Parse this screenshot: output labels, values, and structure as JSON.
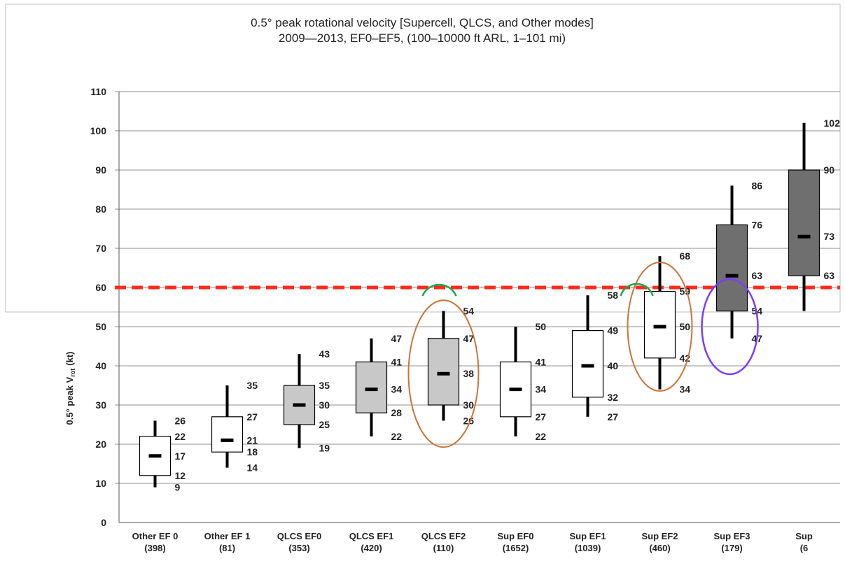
{
  "chart_data": {
    "type": "box",
    "title": "0.5° peak rotational velocity [Supercell, QLCS, and Other modes]",
    "subtitle": "2009—2013, EF0–EF5, (100–10000 ft ARL, 1–101 mi)",
    "ylabel": "0.5° peak V",
    "ylabel_sub": "rot",
    "ylabel_unit": "(kt)",
    "ylim": [
      0,
      110
    ],
    "yticks": [
      "0",
      "10",
      "20",
      "30",
      "40",
      "50",
      "60",
      "70",
      "80",
      "90",
      "100",
      "110"
    ],
    "threshold": 60,
    "categories": [
      {
        "name": "Other EF 0",
        "count": "(398)"
      },
      {
        "name": "Other EF 1",
        "count": "(81)"
      },
      {
        "name": "QLCS EF0",
        "count": "(353)"
      },
      {
        "name": "QLCS EF1",
        "count": "(420)"
      },
      {
        "name": "QLCS EF2",
        "count": "(110)"
      },
      {
        "name": "Sup EF0",
        "count": "(1652)"
      },
      {
        "name": "Sup EF1",
        "count": "(1039)"
      },
      {
        "name": "Sup EF2",
        "count": "(460)"
      },
      {
        "name": "Sup EF3",
        "count": "(179)"
      },
      {
        "name": "Sup",
        "count": "(6"
      }
    ],
    "boxes": [
      {
        "min": 9,
        "q1": 12,
        "median": 17,
        "q3": 22,
        "max": 26,
        "labels": {
          "max": "26",
          "q3": "22",
          "median": "17",
          "q1": "12",
          "min": "9"
        }
      },
      {
        "min": 14,
        "q1": 18,
        "median": 21,
        "q3": 27,
        "max": 35,
        "labels": {
          "max": "35",
          "q3": "27",
          "median": "21",
          "q1": "18",
          "min": "14"
        }
      },
      {
        "min": 19,
        "q1": 25,
        "median": 30,
        "q3": 35,
        "max": 43,
        "labels": {
          "max": "43",
          "q3": "35",
          "median": "30",
          "q1": "25",
          "min": "19"
        }
      },
      {
        "min": 22,
        "q1": 28,
        "median": 34,
        "q3": 41,
        "max": 47,
        "labels": {
          "max": "47",
          "q3": "41",
          "median": "34",
          "q1": "28",
          "min": "22"
        }
      },
      {
        "min": 26,
        "q1": 30,
        "median": 38,
        "q3": 47,
        "max": 54,
        "labels": {
          "max": "54",
          "q3": "47",
          "median": "38",
          "q1": "30",
          "min": "26"
        }
      },
      {
        "min": 22,
        "q1": 27,
        "median": 34,
        "q3": 41,
        "max": 50,
        "labels": {
          "max": "50",
          "q3": "41",
          "median": "34",
          "q1": "27",
          "min": "22"
        }
      },
      {
        "min": 27,
        "q1": 32,
        "median": 40,
        "q3": 49,
        "max": 58,
        "labels": {
          "max": "58",
          "q3": "49",
          "median": "40",
          "q1": "32",
          "min": "27"
        }
      },
      {
        "min": 34,
        "q1": 42,
        "median": 50,
        "q3": 59,
        "max": 68,
        "labels": {
          "max": "68",
          "q3": "59",
          "median": "50",
          "q1": "42",
          "min": "34"
        }
      },
      {
        "min": 47,
        "q1": 54,
        "median": 63,
        "q3": 76,
        "max": 86,
        "labels": {
          "max": "86",
          "q3": "76",
          "median": "63",
          "q1": "54",
          "min": "47"
        }
      },
      {
        "min": 54,
        "q1": 63,
        "median": 73,
        "q3": 90,
        "max": 102,
        "labels": {
          "max": "102",
          "q3": "90",
          "median": "73",
          "q1": "63"
        }
      }
    ],
    "grid": true,
    "colors": {
      "threshold": "#ff2a1a",
      "box_white": "#ffffff",
      "box_light": "#c8c8c8",
      "box_dark": "#6f6f6f",
      "whisker": "#000000",
      "grid": "#8f8f8f",
      "circle_orange": "#c9743a",
      "circle_green": "#1aa84a",
      "circle_purple": "#7a3cff"
    }
  }
}
